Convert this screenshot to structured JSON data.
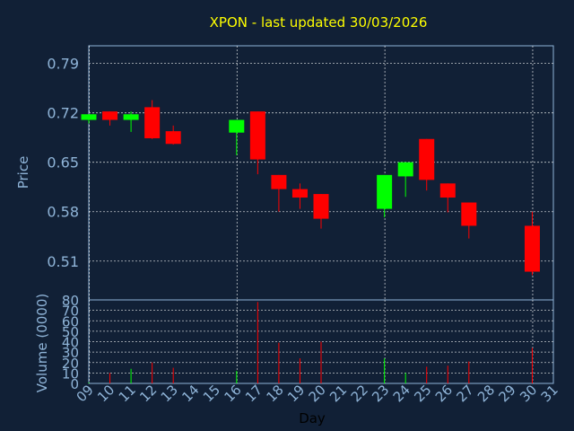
{
  "chart_data": [
    {
      "type": "candlestick",
      "title": "XPON - last updated 30/03/2026",
      "ylabel": "Price",
      "ylim": [
        0.455,
        0.815
      ],
      "yticks": [
        "0.51",
        "0.58",
        "0.65",
        "0.72",
        "0.79"
      ],
      "grid": true,
      "colors": {
        "up": "#00ff00",
        "down": "#ff0000"
      },
      "candles": [
        {
          "day": 9,
          "open": 0.71,
          "high": 0.718,
          "low": 0.705,
          "close": 0.718
        },
        {
          "day": 10,
          "open": 0.722,
          "high": 0.722,
          "low": 0.702,
          "close": 0.71
        },
        {
          "day": 11,
          "open": 0.71,
          "high": 0.722,
          "low": 0.693,
          "close": 0.718
        },
        {
          "day": 12,
          "open": 0.728,
          "high": 0.738,
          "low": 0.683,
          "close": 0.684
        },
        {
          "day": 13,
          "open": 0.694,
          "high": 0.702,
          "low": 0.675,
          "close": 0.676
        },
        {
          "day": 16,
          "open": 0.692,
          "high": 0.71,
          "low": 0.66,
          "close": 0.71
        },
        {
          "day": 17,
          "open": 0.722,
          "high": 0.722,
          "low": 0.633,
          "close": 0.654
        },
        {
          "day": 18,
          "open": 0.632,
          "high": 0.632,
          "low": 0.58,
          "close": 0.612
        },
        {
          "day": 19,
          "open": 0.612,
          "high": 0.62,
          "low": 0.584,
          "close": 0.6
        },
        {
          "day": 20,
          "open": 0.605,
          "high": 0.605,
          "low": 0.556,
          "close": 0.57
        },
        {
          "day": 23,
          "open": 0.584,
          "high": 0.632,
          "low": 0.572,
          "close": 0.632
        },
        {
          "day": 24,
          "open": 0.63,
          "high": 0.65,
          "low": 0.601,
          "close": 0.65
        },
        {
          "day": 25,
          "open": 0.683,
          "high": 0.683,
          "low": 0.61,
          "close": 0.625
        },
        {
          "day": 26,
          "open": 0.62,
          "high": 0.62,
          "low": 0.579,
          "close": 0.6
        },
        {
          "day": 27,
          "open": 0.593,
          "high": 0.593,
          "low": 0.542,
          "close": 0.56
        },
        {
          "day": 30,
          "open": 0.56,
          "high": 0.58,
          "low": 0.49,
          "close": 0.495
        }
      ]
    },
    {
      "type": "bar",
      "ylabel": "Volume (0000)",
      "xlabel": "Day",
      "ylim": [
        0,
        80
      ],
      "yticks": [
        "0",
        "10",
        "20",
        "30",
        "40",
        "50",
        "60",
        "70",
        "80"
      ],
      "xticks": [
        "09",
        "10",
        "11",
        "12",
        "13",
        "14",
        "15",
        "16",
        "17",
        "18",
        "19",
        "20",
        "21",
        "22",
        "23",
        "24",
        "25",
        "26",
        "27",
        "28",
        "29",
        "30",
        "31"
      ],
      "grid": true,
      "bars": [
        {
          "day": 9,
          "value": 1,
          "up": true
        },
        {
          "day": 10,
          "value": 10,
          "up": false
        },
        {
          "day": 11,
          "value": 14,
          "up": true
        },
        {
          "day": 12,
          "value": 20,
          "up": false
        },
        {
          "day": 13,
          "value": 15,
          "up": false
        },
        {
          "day": 16,
          "value": 12,
          "up": true
        },
        {
          "day": 17,
          "value": 78,
          "up": false
        },
        {
          "day": 18,
          "value": 39,
          "up": false
        },
        {
          "day": 19,
          "value": 24,
          "up": false
        },
        {
          "day": 20,
          "value": 40,
          "up": false
        },
        {
          "day": 23,
          "value": 24,
          "up": true
        },
        {
          "day": 24,
          "value": 10,
          "up": true
        },
        {
          "day": 25,
          "value": 16,
          "up": false
        },
        {
          "day": 26,
          "value": 17,
          "up": false
        },
        {
          "day": 27,
          "value": 21,
          "up": false
        },
        {
          "day": 30,
          "value": 34,
          "up": false
        }
      ]
    }
  ]
}
